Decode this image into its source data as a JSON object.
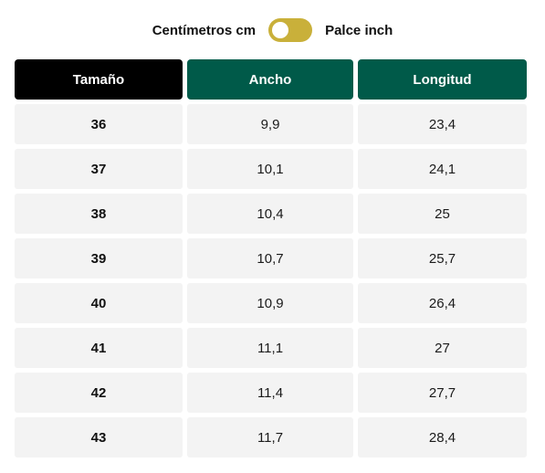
{
  "unit_toggle": {
    "left_label": "Centímetros cm",
    "right_label": "Palce inch",
    "toggle_color": "#c9b03a"
  },
  "table": {
    "headers": [
      {
        "label": "Tamaño",
        "bg": "#000000"
      },
      {
        "label": "Ancho",
        "bg": "#005a49"
      },
      {
        "label": "Longitud",
        "bg": "#005a49"
      }
    ],
    "rows": [
      [
        "36",
        "9,9",
        "23,4"
      ],
      [
        "37",
        "10,1",
        "24,1"
      ],
      [
        "38",
        "10,4",
        "25"
      ],
      [
        "39",
        "10,7",
        "25,7"
      ],
      [
        "40",
        "10,9",
        "26,4"
      ],
      [
        "41",
        "11,1",
        "27"
      ],
      [
        "42",
        "11,4",
        "27,7"
      ],
      [
        "43",
        "11,7",
        "28,4"
      ]
    ]
  }
}
